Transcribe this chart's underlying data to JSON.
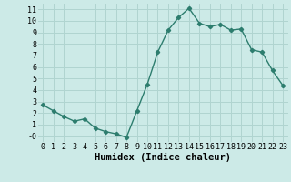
{
  "x": [
    0,
    1,
    2,
    3,
    4,
    5,
    6,
    7,
    8,
    9,
    10,
    11,
    12,
    13,
    14,
    15,
    16,
    17,
    18,
    19,
    20,
    21,
    22,
    23
  ],
  "y": [
    2.7,
    2.2,
    1.7,
    1.3,
    1.5,
    0.7,
    0.4,
    0.2,
    -0.1,
    2.2,
    4.5,
    7.3,
    9.2,
    10.3,
    11.1,
    9.8,
    9.5,
    9.7,
    9.2,
    9.3,
    7.5,
    7.3,
    5.7,
    4.4
  ],
  "xlabel": "Humidex (Indice chaleur)",
  "ylim": [
    -0.5,
    11.5
  ],
  "xlim": [
    -0.5,
    23.5
  ],
  "yticks": [
    0,
    1,
    2,
    3,
    4,
    5,
    6,
    7,
    8,
    9,
    10,
    11
  ],
  "ytick_labels": [
    "-0",
    "1",
    "2",
    "3",
    "4",
    "5",
    "6",
    "7",
    "8",
    "9",
    "10",
    "11"
  ],
  "xticks": [
    0,
    1,
    2,
    3,
    4,
    5,
    6,
    7,
    8,
    9,
    10,
    11,
    12,
    13,
    14,
    15,
    16,
    17,
    18,
    19,
    20,
    21,
    22,
    23
  ],
  "line_color": "#2d7d6e",
  "bg_color": "#cceae7",
  "grid_color": "#b0d4d0",
  "marker": "D",
  "marker_size": 2.2,
  "line_width": 1.0,
  "xlabel_fontsize": 7.5,
  "tick_fontsize": 6.0
}
